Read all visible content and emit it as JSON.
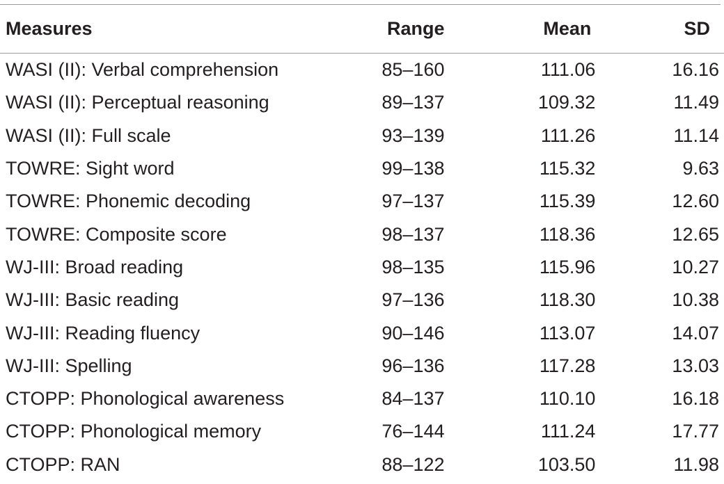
{
  "table": {
    "headers": {
      "measures": "Measures",
      "range": "Range",
      "mean": "Mean",
      "sd": "SD"
    },
    "rows": [
      {
        "measure": "WASI (II): Verbal comprehension",
        "range": "85–160",
        "mean": "111.06",
        "sd": "16.16"
      },
      {
        "measure": "WASI (II): Perceptual reasoning",
        "range": "89–137",
        "mean": "109.32",
        "sd": "11.49"
      },
      {
        "measure": "WASI (II): Full scale",
        "range": "93–139",
        "mean": "111.26",
        "sd": "11.14"
      },
      {
        "measure": "TOWRE: Sight word",
        "range": "99–138",
        "mean": "115.32",
        "sd": "9.63"
      },
      {
        "measure": "TOWRE: Phonemic decoding",
        "range": "97–137",
        "mean": "115.39",
        "sd": "12.60"
      },
      {
        "measure": "TOWRE: Composite score",
        "range": "98–137",
        "mean": "118.36",
        "sd": "12.65"
      },
      {
        "measure": "WJ-III: Broad reading",
        "range": "98–135",
        "mean": "115.96",
        "sd": "10.27"
      },
      {
        "measure": "WJ-III: Basic reading",
        "range": "97–136",
        "mean": "118.30",
        "sd": "10.38"
      },
      {
        "measure": "WJ-III: Reading fluency",
        "range": "90–146",
        "mean": "113.07",
        "sd": "14.07"
      },
      {
        "measure": "WJ-III: Spelling",
        "range": "96–136",
        "mean": "117.28",
        "sd": "13.03"
      },
      {
        "measure": "CTOPP: Phonological awareness",
        "range": "84–137",
        "mean": "110.10",
        "sd": "16.18"
      },
      {
        "measure": "CTOPP: Phonological memory",
        "range": "76–144",
        "mean": "111.24",
        "sd": "17.77"
      },
      {
        "measure": "CTOPP: RAN",
        "range": "88–122",
        "mean": "103.50",
        "sd": "11.98"
      }
    ]
  }
}
